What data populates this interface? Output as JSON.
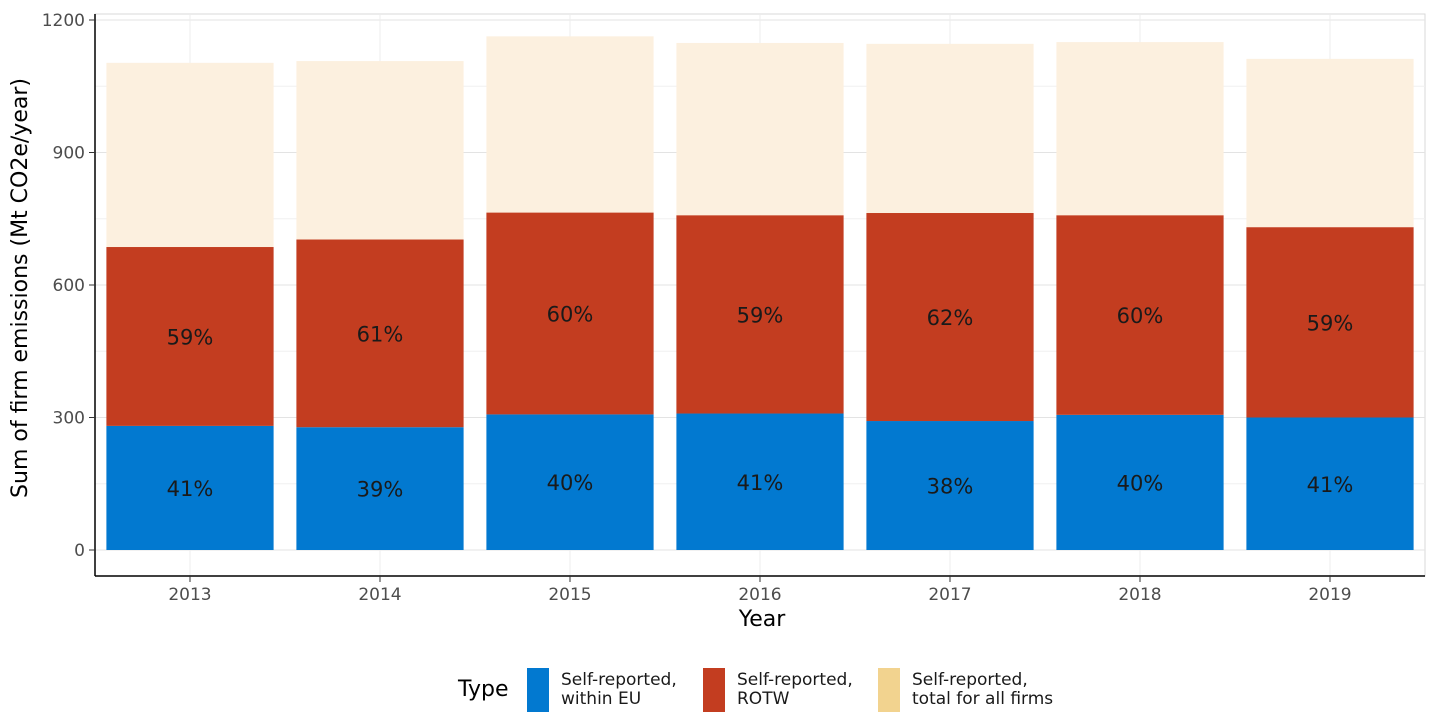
{
  "chart_data": {
    "type": "bar",
    "stacked": true,
    "xlabel": "Year",
    "ylabel": "Sum of firm emissions (Mt CO2e/year)",
    "ylim": [
      0,
      1200
    ],
    "yticks": [
      0,
      300,
      600,
      900,
      1200
    ],
    "grid": true,
    "legend_position": "bottom",
    "legend_title": "Type",
    "categories": [
      "2013",
      "2014",
      "2015",
      "2016",
      "2017",
      "2018",
      "2019"
    ],
    "series": [
      {
        "name": "Self-reported, within EU",
        "color": "#0279D0",
        "values": [
          281,
          278,
          307,
          309,
          292,
          306,
          300
        ],
        "labels": [
          "41%",
          "39%",
          "40%",
          "41%",
          "38%",
          "40%",
          "41%"
        ]
      },
      {
        "name": "Self-reported, ROTW",
        "color": "#C33D20",
        "values": [
          405,
          425,
          457,
          449,
          471,
          452,
          431
        ],
        "labels": [
          "59%",
          "61%",
          "60%",
          "59%",
          "62%",
          "60%",
          "59%"
        ]
      },
      {
        "name": "Self-reported, total for all firms",
        "color": "#FCF0DF",
        "legend_color": "#F2D38F",
        "values": [
          417,
          404,
          399,
          390,
          383,
          392,
          381
        ],
        "labels": [
          "",
          "",
          "",
          "",
          "",
          "",
          ""
        ]
      }
    ]
  }
}
